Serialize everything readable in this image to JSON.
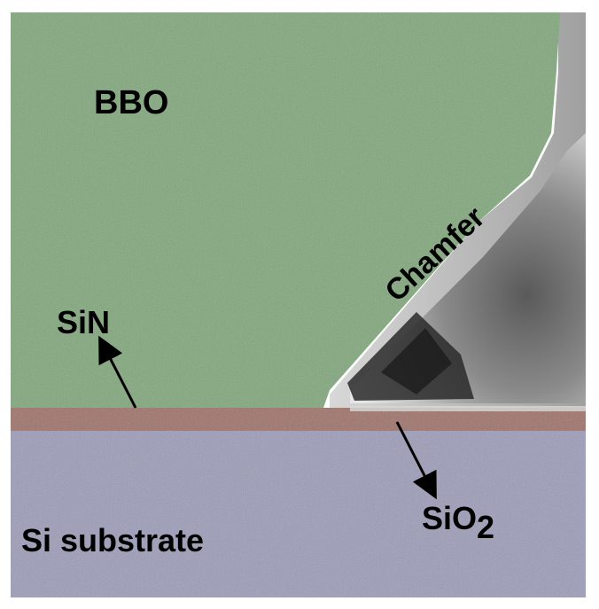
{
  "labels": {
    "bbo": "BBO",
    "chamfer": "Chamfer",
    "sin": "SiN",
    "sio2_base": "SiO",
    "sio2_sub": "2",
    "si_substrate": "Si substrate"
  },
  "colors": {
    "bbo_layer": "#7fa57a",
    "sin_layer": "#9c6f66",
    "substrate_layer": "#9a9ab6",
    "chamfer_region": "#6d6d6d",
    "text": "#000000"
  }
}
